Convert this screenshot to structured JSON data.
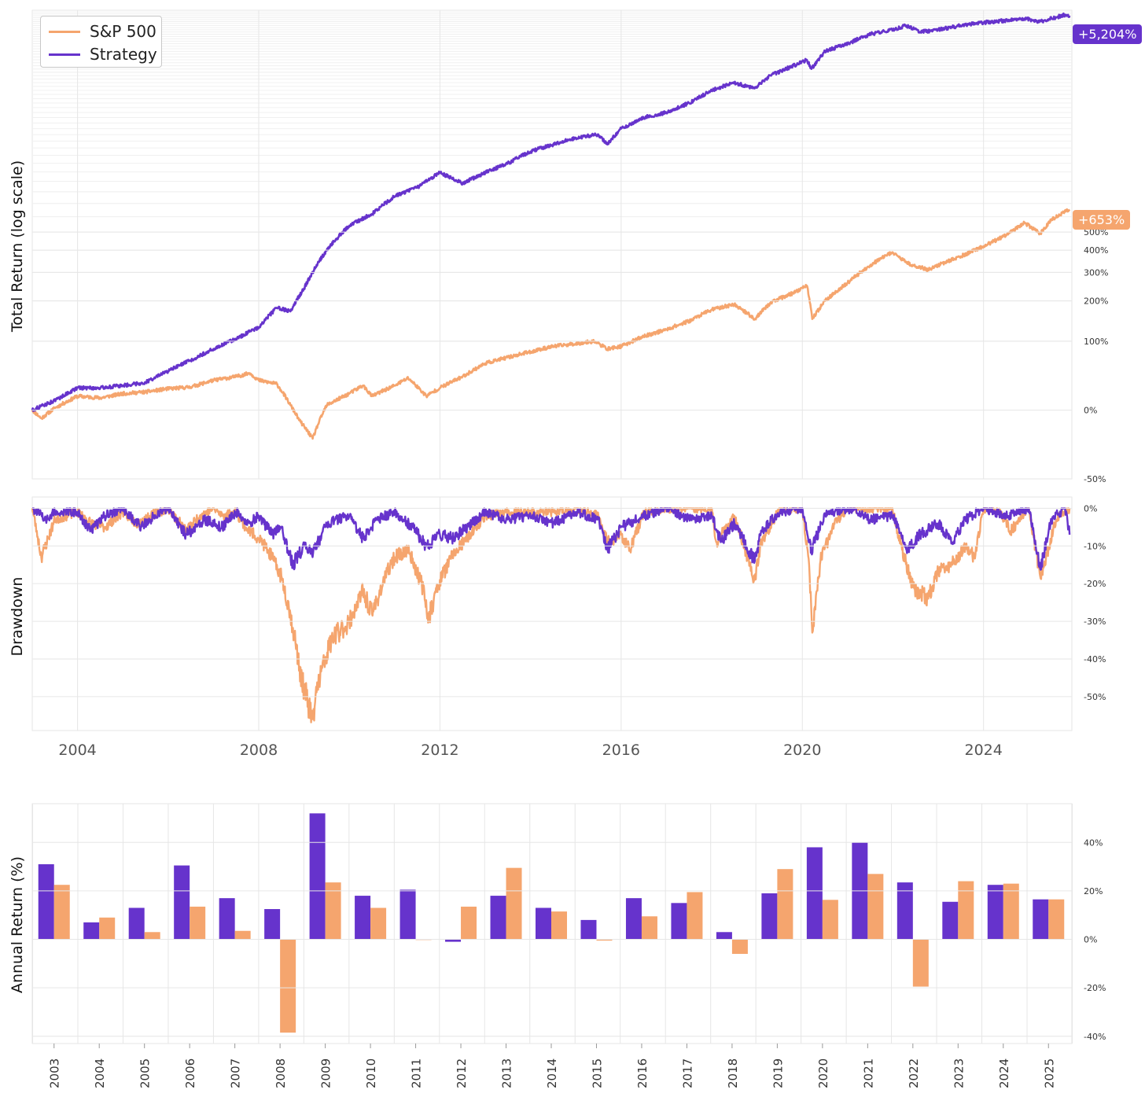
{
  "colors": {
    "strategy": "#6633cc",
    "sp500": "#f5a56e",
    "grid": "#e6e6e6"
  },
  "legend": {
    "sp500": "S&P 500",
    "strategy": "Strategy"
  },
  "end_labels": {
    "strategy": "+5,204%",
    "sp500": "+653%"
  },
  "chart_data": [
    {
      "id": "total_return",
      "type": "line",
      "ylabel": "Total Return (log scale)",
      "yscale": "log",
      "ytick_labels": [
        "-50%",
        "0%",
        "100%",
        "200%",
        "300%",
        "400%",
        "500%"
      ],
      "ytick_values": [
        -50,
        0,
        100,
        200,
        300,
        400,
        500
      ],
      "ylim": [
        -50,
        5500
      ],
      "xlim": [
        2003.0,
        2025.95
      ],
      "series": [
        {
          "name": "S&P 500",
          "color": "#f5a56e",
          "x": [
            2003.0,
            2003.2,
            2003.5,
            2004.0,
            2004.5,
            2005.0,
            2005.5,
            2006.0,
            2006.5,
            2007.0,
            2007.5,
            2007.8,
            2008.0,
            2008.4,
            2008.7,
            2008.9,
            2009.19,
            2009.5,
            2010.0,
            2010.3,
            2010.5,
            2011.0,
            2011.3,
            2011.7,
            2012.0,
            2012.5,
            2013.0,
            2013.5,
            2014.0,
            2014.5,
            2015.0,
            2015.4,
            2015.7,
            2016.0,
            2016.5,
            2017.0,
            2017.5,
            2018.0,
            2018.5,
            2018.95,
            2019.3,
            2019.8,
            2020.1,
            2020.22,
            2020.5,
            2021.0,
            2021.5,
            2021.99,
            2022.3,
            2022.78,
            2023.0,
            2023.5,
            2024.0,
            2024.5,
            2024.9,
            2025.25,
            2025.5,
            2025.9
          ],
          "y": [
            0,
            -8,
            2,
            15,
            13,
            18,
            20,
            24,
            26,
            35,
            40,
            45,
            35,
            30,
            5,
            -10,
            -25,
            5,
            18,
            28,
            15,
            28,
            38,
            15,
            25,
            40,
            60,
            70,
            80,
            90,
            95,
            100,
            85,
            90,
            110,
            125,
            145,
            175,
            190,
            150,
            195,
            225,
            250,
            150,
            200,
            260,
            330,
            390,
            340,
            310,
            330,
            370,
            420,
            480,
            560,
            490,
            580,
            653
          ]
        },
        {
          "name": "Strategy",
          "color": "#6633cc",
          "x": [
            2003.0,
            2003.5,
            2004.0,
            2004.5,
            2005.0,
            2005.5,
            2006.0,
            2006.5,
            2007.0,
            2007.5,
            2008.0,
            2008.4,
            2008.7,
            2009.0,
            2009.5,
            2010.0,
            2010.5,
            2011.0,
            2011.5,
            2012.0,
            2012.5,
            2013.0,
            2013.5,
            2014.0,
            2014.5,
            2015.0,
            2015.5,
            2015.7,
            2016.0,
            2016.5,
            2017.0,
            2017.5,
            2018.0,
            2018.5,
            2018.95,
            2019.3,
            2019.8,
            2020.1,
            2020.2,
            2020.5,
            2021.0,
            2021.5,
            2022.0,
            2022.3,
            2022.6,
            2023.0,
            2023.5,
            2024.0,
            2024.5,
            2024.9,
            2025.25,
            2025.5,
            2025.8,
            2025.9
          ],
          "y": [
            0,
            10,
            25,
            25,
            28,
            32,
            48,
            65,
            85,
            105,
            130,
            180,
            170,
            240,
            400,
            540,
            620,
            760,
            840,
            990,
            880,
            990,
            1100,
            1250,
            1350,
            1450,
            1500,
            1350,
            1600,
            1800,
            1900,
            2100,
            2400,
            2600,
            2450,
            2800,
            3100,
            3300,
            3000,
            3600,
            3900,
            4300,
            4500,
            4700,
            4400,
            4500,
            4700,
            4850,
            4950,
            5050,
            4900,
            5050,
            5250,
            5204
          ]
        }
      ]
    },
    {
      "id": "drawdown",
      "type": "line",
      "ylabel": "Drawdown",
      "ytick_labels": [
        "0%",
        "-10%",
        "-20%",
        "-30%",
        "-40%",
        "-50%"
      ],
      "ytick_values": [
        0,
        -10,
        -20,
        -30,
        -40,
        -50
      ],
      "ylim": [
        -59,
        3
      ],
      "xlim": [
        2003.0,
        2025.95
      ],
      "xtick_labels": [
        "2004",
        "2008",
        "2012",
        "2016",
        "2020",
        "2024"
      ],
      "xtick_values": [
        2004,
        2008,
        2012,
        2016,
        2020,
        2024
      ],
      "series": [
        {
          "name": "S&P 500",
          "color": "#f5a56e",
          "x": [
            2003.0,
            2003.1,
            2003.2,
            2003.5,
            2004.0,
            2004.3,
            2004.6,
            2005.0,
            2005.3,
            2005.6,
            2006.0,
            2006.4,
            2006.7,
            2007.0,
            2007.2,
            2007.5,
            2007.7,
            2008.0,
            2008.2,
            2008.5,
            2008.7,
            2008.9,
            2009.0,
            2009.19,
            2009.3,
            2009.6,
            2010.0,
            2010.3,
            2010.5,
            2010.8,
            2011.0,
            2011.3,
            2011.6,
            2011.75,
            2012.0,
            2012.3,
            2012.6,
            2013.0,
            2013.5,
            2014.0,
            2014.5,
            2015.0,
            2015.5,
            2015.7,
            2016.0,
            2016.2,
            2016.5,
            2017.0,
            2017.5,
            2018.0,
            2018.1,
            2018.5,
            2018.95,
            2019.1,
            2019.5,
            2020.0,
            2020.15,
            2020.22,
            2020.4,
            2020.7,
            2021.0,
            2021.5,
            2021.99,
            2022.2,
            2022.45,
            2022.78,
            2023.0,
            2023.3,
            2023.6,
            2023.8,
            2024.0,
            2024.3,
            2024.6,
            2025.0,
            2025.25,
            2025.4,
            2025.6,
            2025.9
          ],
          "y": [
            0,
            -6,
            -13,
            -3,
            -1,
            -4,
            -5,
            -1,
            -4,
            -2,
            0,
            -6,
            -2,
            0,
            -2,
            -1,
            -5,
            -8,
            -11,
            -18,
            -28,
            -42,
            -48,
            -56,
            -47,
            -35,
            -30,
            -22,
            -28,
            -18,
            -13,
            -11,
            -20,
            -29,
            -19,
            -12,
            -8,
            -2,
            -1,
            -1,
            -1,
            0,
            -2,
            -9,
            -7,
            -11,
            -1,
            0,
            0,
            0,
            -9,
            -2,
            -19,
            -9,
            0,
            0,
            -15,
            -33,
            -14,
            -4,
            0,
            0,
            0,
            -11,
            -21,
            -24,
            -17,
            -15,
            -10,
            -13,
            0,
            0,
            -6,
            0,
            -18,
            -12,
            -3,
            0
          ]
        },
        {
          "name": "Strategy",
          "color": "#6633cc",
          "x": [
            2003.0,
            2003.3,
            2003.5,
            2004.0,
            2004.3,
            2004.6,
            2005.0,
            2005.4,
            2005.8,
            2006.0,
            2006.4,
            2006.8,
            2007.2,
            2007.5,
            2007.8,
            2008.0,
            2008.3,
            2008.5,
            2008.75,
            2009.0,
            2009.2,
            2009.5,
            2010.0,
            2010.3,
            2010.6,
            2011.0,
            2011.4,
            2011.7,
            2012.0,
            2012.3,
            2012.6,
            2013.0,
            2013.5,
            2014.0,
            2014.5,
            2015.0,
            2015.5,
            2015.7,
            2016.0,
            2016.5,
            2017.0,
            2017.5,
            2018.0,
            2018.2,
            2018.5,
            2018.95,
            2019.1,
            2019.5,
            2020.0,
            2020.2,
            2020.5,
            2021.0,
            2021.5,
            2022.0,
            2022.3,
            2022.6,
            2023.0,
            2023.3,
            2023.6,
            2024.0,
            2024.5,
            2025.0,
            2025.25,
            2025.5,
            2025.8,
            2025.9
          ],
          "y": [
            0,
            -3,
            -1,
            -1,
            -6,
            -2,
            0,
            -5,
            -1,
            0,
            -7,
            -3,
            -5,
            -1,
            -4,
            -2,
            -7,
            -5,
            -15,
            -10,
            -12,
            -4,
            -2,
            -8,
            -3,
            -1,
            -5,
            -10,
            -7,
            -8,
            -5,
            -1,
            -3,
            -2,
            -4,
            -1,
            -3,
            -11,
            -5,
            -2,
            0,
            -3,
            -2,
            -9,
            -4,
            -14,
            -6,
            -1,
            0,
            -11,
            -2,
            0,
            -3,
            -2,
            -11,
            -7,
            -4,
            -9,
            -3,
            0,
            -2,
            0,
            -16,
            -3,
            0,
            -7
          ]
        }
      ]
    },
    {
      "id": "annual_return",
      "type": "bar",
      "ylabel": "Annual Return (%)",
      "ytick_labels": [
        "-40%",
        "-20%",
        "0%",
        "20%",
        "40%"
      ],
      "ytick_values": [
        -40,
        -20,
        0,
        20,
        40
      ],
      "ylim": [
        -43,
        56
      ],
      "categories": [
        "2003",
        "2004",
        "2005",
        "2006",
        "2007",
        "2008",
        "2009",
        "2010",
        "2011",
        "2012",
        "2013",
        "2014",
        "2015",
        "2016",
        "2017",
        "2018",
        "2019",
        "2020",
        "2021",
        "2022",
        "2023",
        "2024",
        "2025"
      ],
      "series": [
        {
          "name": "Strategy",
          "color": "#6633cc",
          "values": [
            31,
            7,
            13,
            30.5,
            17,
            12.5,
            52,
            18,
            20.5,
            -1,
            18,
            13,
            8,
            17,
            15,
            3,
            19,
            38,
            40,
            23.5,
            15.5,
            22.5,
            16.5
          ]
        },
        {
          "name": "S&P 500",
          "color": "#f5a56e",
          "values": [
            22.5,
            9,
            3,
            13.5,
            3.5,
            -38.5,
            23.5,
            13,
            0,
            13.5,
            29.5,
            11.5,
            -0.5,
            9.5,
            19.5,
            -6,
            29,
            16.3,
            27,
            -19.5,
            24,
            23,
            16.5
          ]
        }
      ]
    }
  ]
}
